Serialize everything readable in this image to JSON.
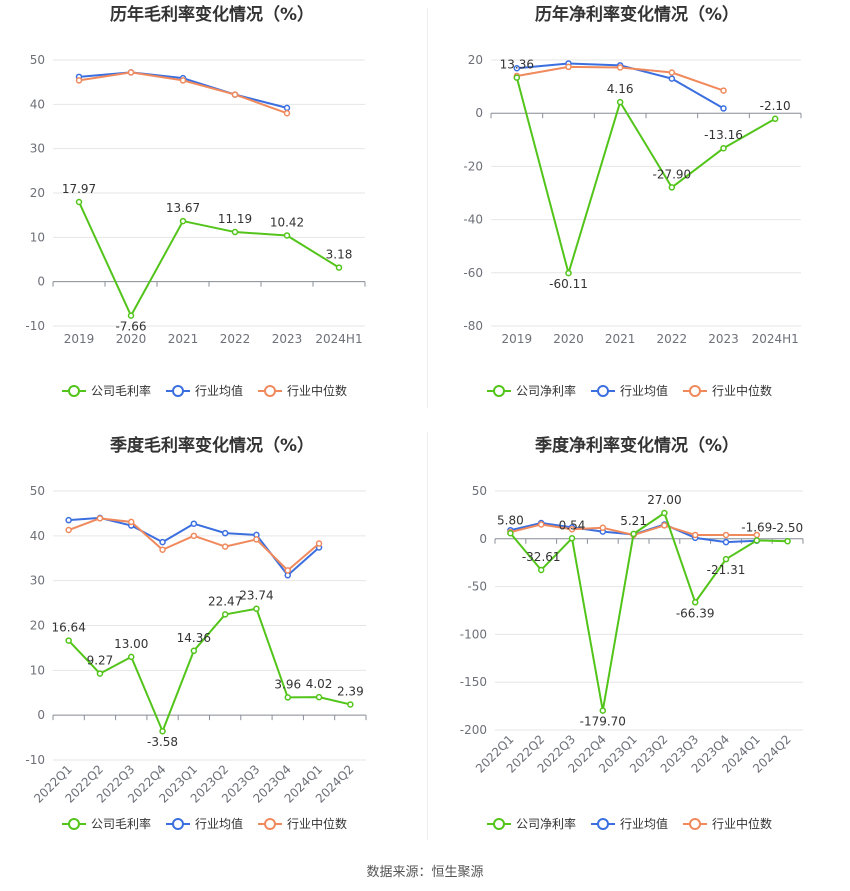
{
  "colors": {
    "company": "#52c41a",
    "avg": "#3b6fe0",
    "median": "#f08a5d",
    "grid": "#e6e6e6",
    "axis": "#6e7079"
  },
  "source": "数据来源：恒生聚源",
  "chart_data": [
    {
      "type": "line",
      "title": "历年毛利率变化情况（%）",
      "categories": [
        "2019",
        "2020",
        "2021",
        "2022",
        "2023",
        "2024H1"
      ],
      "ylim": [
        -10,
        50
      ],
      "yticks": [
        -10,
        0,
        10,
        20,
        30,
        40,
        50
      ],
      "legend": "bottom",
      "series": [
        {
          "name": "公司毛利率",
          "values": [
            17.97,
            -7.66,
            13.67,
            11.19,
            10.42,
            3.18
          ],
          "labels": [
            "17.97",
            "-7.66",
            "13.67",
            "11.19",
            "10.42",
            "3.18"
          ]
        },
        {
          "name": "行业均值",
          "values": [
            46.2,
            47.2,
            45.9,
            42.2,
            39.2,
            null
          ]
        },
        {
          "name": "行业中位数",
          "values": [
            45.4,
            47.2,
            45.4,
            42.2,
            38.0,
            null
          ]
        }
      ]
    },
    {
      "type": "line",
      "title": "历年净利率变化情况（%）",
      "categories": [
        "2019",
        "2020",
        "2021",
        "2022",
        "2023",
        "2024H1"
      ],
      "ylim": [
        -80,
        20
      ],
      "yticks": [
        -80,
        -60,
        -40,
        -20,
        0,
        20
      ],
      "legend": "bottom",
      "series": [
        {
          "name": "公司净利率",
          "values": [
            13.36,
            -60.11,
            4.16,
            -27.9,
            -13.16,
            -2.1
          ],
          "labels": [
            "13.36",
            "-60.11",
            "4.16",
            "-27.90",
            "-13.16",
            "-2.10"
          ]
        },
        {
          "name": "行业均值",
          "values": [
            16.9,
            18.7,
            18.0,
            13.0,
            1.8,
            null
          ]
        },
        {
          "name": "行业中位数",
          "values": [
            14.0,
            17.4,
            17.2,
            15.3,
            8.5,
            null
          ]
        }
      ]
    },
    {
      "type": "line",
      "title": "季度毛利率变化情况（%）",
      "categories": [
        "2022Q1",
        "2022Q2",
        "2022Q3",
        "2022Q4",
        "2023Q1",
        "2023Q2",
        "2023Q3",
        "2023Q4",
        "2024Q1",
        "2024Q2"
      ],
      "ylim": [
        -10,
        50
      ],
      "yticks": [
        -10,
        0,
        10,
        20,
        30,
        40,
        50
      ],
      "legend": "bottom",
      "series": [
        {
          "name": "公司毛利率",
          "values": [
            16.64,
            9.27,
            13.0,
            -3.58,
            14.36,
            22.47,
            23.74,
            3.96,
            4.02,
            2.39
          ],
          "labels": [
            "16.64",
            "9.27",
            "13.00",
            "-3.58",
            "14.36",
            "22.47",
            "23.74",
            "3.96",
            "4.02",
            "2.39"
          ]
        },
        {
          "name": "行业均值",
          "values": [
            43.5,
            44.0,
            42.3,
            38.6,
            42.7,
            40.6,
            40.2,
            31.2,
            37.4,
            null
          ]
        },
        {
          "name": "行业中位数",
          "values": [
            41.3,
            43.9,
            43.1,
            36.9,
            40.0,
            37.6,
            39.2,
            32.3,
            38.3,
            null
          ]
        }
      ]
    },
    {
      "type": "line",
      "title": "季度净利率变化情况（%）",
      "categories": [
        "2022Q1",
        "2022Q2",
        "2022Q3",
        "2022Q4",
        "2023Q1",
        "2023Q2",
        "2023Q3",
        "2023Q4",
        "2024Q1",
        "2024Q2"
      ],
      "ylim": [
        -200,
        50
      ],
      "yticks": [
        -200,
        -150,
        -100,
        -50,
        0,
        50
      ],
      "legend": "bottom",
      "series": [
        {
          "name": "公司净利率",
          "values": [
            5.8,
            -32.61,
            0.54,
            -179.7,
            5.21,
            27.0,
            -66.39,
            -21.31,
            -1.69,
            -2.5
          ],
          "labels": [
            "5.80",
            "-32.61",
            "0.54",
            "-179.70",
            "5.21",
            "27.00",
            "-66.39",
            "-21.31",
            "-1.69",
            "-2.50"
          ]
        },
        {
          "name": "行业均值",
          "values": [
            9.0,
            16.5,
            12.0,
            7.5,
            4.5,
            15.0,
            1.0,
            -3.5,
            -2.0,
            null
          ]
        },
        {
          "name": "行业中位数",
          "values": [
            7.0,
            15.0,
            10.0,
            11.5,
            4.0,
            14.0,
            4.0,
            4.0,
            4.0,
            null
          ]
        }
      ]
    }
  ]
}
